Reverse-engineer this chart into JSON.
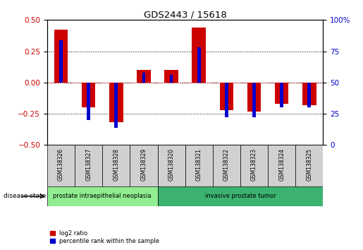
{
  "title": "GDS2443 / 15618",
  "samples": [
    "GSM138326",
    "GSM138327",
    "GSM138328",
    "GSM138329",
    "GSM138320",
    "GSM138321",
    "GSM138322",
    "GSM138323",
    "GSM138324",
    "GSM138325"
  ],
  "log2_ratio": [
    0.42,
    -0.2,
    -0.32,
    0.1,
    0.1,
    0.44,
    -0.22,
    -0.23,
    -0.17,
    -0.18
  ],
  "percentile_rank": [
    84,
    20,
    14,
    58,
    56,
    78,
    22,
    22,
    30,
    30
  ],
  "ylim_left": [
    -0.5,
    0.5
  ],
  "yticks_left": [
    -0.5,
    -0.25,
    0,
    0.25,
    0.5
  ],
  "yticks_right": [
    0,
    25,
    50,
    75,
    100
  ],
  "red_color": "#cc0000",
  "blue_color": "#0000cc",
  "zero_line_color": "#cc0000",
  "disease_groups": [
    {
      "label": "prostate intraepithelial neoplasia",
      "start": 0,
      "end": 4,
      "color": "#90ee90"
    },
    {
      "label": "invasive prostate tumor",
      "start": 4,
      "end": 10,
      "color": "#3cb371"
    }
  ],
  "legend_items": [
    {
      "label": "log2 ratio",
      "color": "#cc0000"
    },
    {
      "label": "percentile rank within the sample",
      "color": "#0000cc"
    }
  ],
  "disease_state_label": "disease state"
}
